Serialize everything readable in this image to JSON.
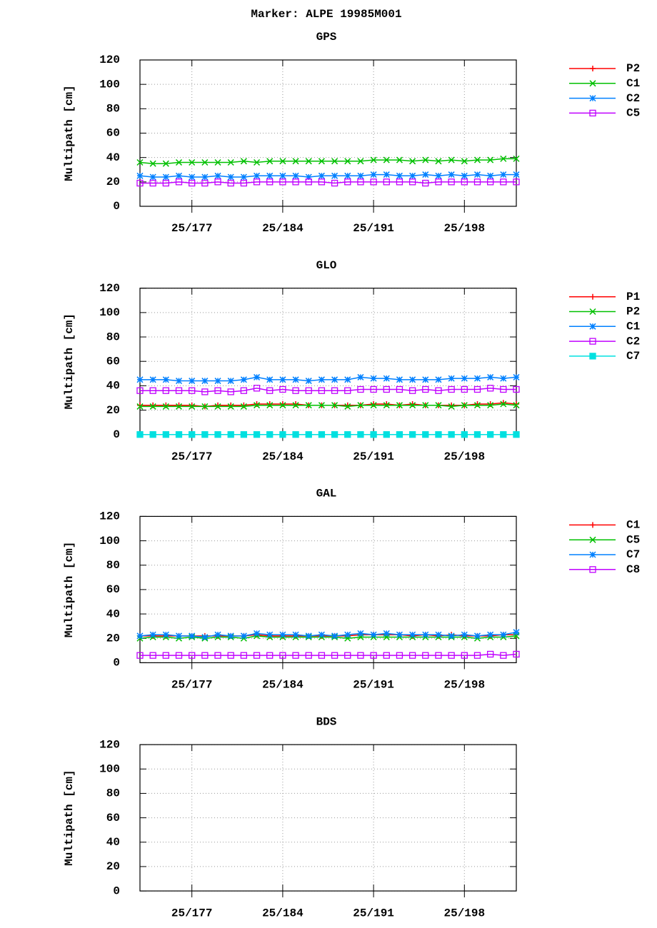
{
  "title": "Marker: ALPE 19985M001",
  "chart_data": [
    {
      "type": "line",
      "title": "GPS",
      "ylabel": "Multipath [cm]",
      "x": [
        173,
        174,
        175,
        176,
        177,
        178,
        179,
        180,
        181,
        182,
        183,
        184,
        185,
        186,
        187,
        188,
        189,
        190,
        191,
        192,
        193,
        194,
        195,
        196,
        197,
        198,
        199,
        200,
        201,
        202
      ],
      "xlim": [
        173,
        202
      ],
      "xticks": [
        {
          "value": 177,
          "label": "25/177"
        },
        {
          "value": 184,
          "label": "25/184"
        },
        {
          "value": 191,
          "label": "25/191"
        },
        {
          "value": 198,
          "label": "25/198"
        }
      ],
      "ylim": [
        0,
        120
      ],
      "yticks": [
        0,
        20,
        40,
        60,
        80,
        100,
        120
      ],
      "grid": true,
      "legend": "right",
      "series": [
        {
          "name": "P2",
          "color": "#ff0000",
          "values": [
            null,
            null,
            null,
            null,
            null,
            null,
            null,
            null,
            null,
            null,
            null,
            null,
            null,
            null,
            null,
            null,
            null,
            null,
            null,
            null,
            null,
            null,
            null,
            null,
            null,
            null,
            null,
            null,
            null,
            null
          ]
        },
        {
          "name": "C1",
          "color": "#00c000",
          "values": [
            36,
            35,
            35,
            36,
            36,
            36,
            36,
            36,
            37,
            36,
            37,
            37,
            37,
            37,
            37,
            37,
            37,
            37,
            38,
            38,
            38,
            37,
            38,
            37,
            38,
            37,
            38,
            38,
            39,
            39
          ]
        },
        {
          "name": "C2",
          "color": "#0080ff",
          "values": [
            25,
            24,
            24,
            25,
            24,
            24,
            25,
            24,
            24,
            25,
            25,
            25,
            25,
            24,
            25,
            25,
            25,
            25,
            26,
            26,
            25,
            25,
            26,
            25,
            26,
            25,
            26,
            25,
            26,
            26
          ]
        },
        {
          "name": "C5",
          "color": "#c000ff",
          "values": [
            19,
            19,
            19,
            20,
            19,
            19,
            20,
            19,
            19,
            20,
            20,
            20,
            20,
            20,
            20,
            19,
            20,
            20,
            20,
            20,
            20,
            20,
            19,
            20,
            20,
            20,
            20,
            20,
            20,
            20
          ]
        }
      ]
    },
    {
      "type": "line",
      "title": "GLO",
      "ylabel": "Multipath [cm]",
      "x": [
        173,
        174,
        175,
        176,
        177,
        178,
        179,
        180,
        181,
        182,
        183,
        184,
        185,
        186,
        187,
        188,
        189,
        190,
        191,
        192,
        193,
        194,
        195,
        196,
        197,
        198,
        199,
        200,
        201,
        202
      ],
      "xlim": [
        173,
        202
      ],
      "xticks": [
        {
          "value": 177,
          "label": "25/177"
        },
        {
          "value": 184,
          "label": "25/184"
        },
        {
          "value": 191,
          "label": "25/191"
        },
        {
          "value": 198,
          "label": "25/198"
        }
      ],
      "ylim": [
        0,
        120
      ],
      "yticks": [
        0,
        20,
        40,
        60,
        80,
        100,
        120
      ],
      "grid": true,
      "legend": "right",
      "series": [
        {
          "name": "P1",
          "color": "#ff0000",
          "values": [
            24,
            24,
            24,
            24,
            24,
            23,
            24,
            24,
            24,
            25,
            25,
            25,
            25,
            24,
            24,
            24,
            24,
            24,
            25,
            25,
            24,
            25,
            24,
            24,
            24,
            24,
            25,
            25,
            26,
            25
          ]
        },
        {
          "name": "P2",
          "color": "#00c000",
          "values": [
            23,
            23,
            23,
            23,
            23,
            23,
            23,
            23,
            23,
            24,
            24,
            24,
            24,
            24,
            24,
            24,
            23,
            24,
            24,
            24,
            24,
            24,
            24,
            24,
            23,
            24,
            24,
            24,
            25,
            24
          ]
        },
        {
          "name": "C1",
          "color": "#0080ff",
          "values": [
            45,
            45,
            45,
            44,
            44,
            44,
            44,
            44,
            45,
            47,
            45,
            45,
            45,
            44,
            45,
            45,
            45,
            47,
            46,
            46,
            45,
            45,
            45,
            45,
            46,
            46,
            46,
            47,
            46,
            47
          ]
        },
        {
          "name": "C2",
          "color": "#c000ff",
          "values": [
            36,
            36,
            36,
            36,
            36,
            35,
            36,
            35,
            36,
            38,
            36,
            37,
            36,
            36,
            36,
            36,
            36,
            37,
            37,
            37,
            37,
            36,
            37,
            36,
            37,
            37,
            37,
            38,
            37,
            37
          ]
        },
        {
          "name": "C7",
          "color": "#00e0e0",
          "values": [
            0,
            0,
            0,
            0,
            0,
            0,
            0,
            0,
            0,
            0,
            0,
            0,
            0,
            0,
            0,
            0,
            0,
            0,
            0,
            0,
            0,
            0,
            0,
            0,
            0,
            0,
            0,
            0,
            0,
            0
          ]
        }
      ]
    },
    {
      "type": "line",
      "title": "GAL",
      "ylabel": "Multipath [cm]",
      "x": [
        173,
        174,
        175,
        176,
        177,
        178,
        179,
        180,
        181,
        182,
        183,
        184,
        185,
        186,
        187,
        188,
        189,
        190,
        191,
        192,
        193,
        194,
        195,
        196,
        197,
        198,
        199,
        200,
        201,
        202
      ],
      "xlim": [
        173,
        202
      ],
      "xticks": [
        {
          "value": 177,
          "label": "25/177"
        },
        {
          "value": 184,
          "label": "25/184"
        },
        {
          "value": 191,
          "label": "25/191"
        },
        {
          "value": 198,
          "label": "25/198"
        }
      ],
      "ylim": [
        0,
        120
      ],
      "yticks": [
        0,
        20,
        40,
        60,
        80,
        100,
        120
      ],
      "grid": true,
      "legend": "right",
      "series": [
        {
          "name": "C1",
          "color": "#ff0000",
          "values": [
            22,
            22,
            22,
            22,
            22,
            22,
            22,
            22,
            22,
            23,
            22,
            22,
            22,
            22,
            22,
            22,
            22,
            23,
            23,
            23,
            23,
            22,
            23,
            22,
            23,
            22,
            22,
            22,
            23,
            23
          ]
        },
        {
          "name": "C5",
          "color": "#00c000",
          "values": [
            20,
            21,
            21,
            20,
            21,
            20,
            21,
            21,
            20,
            22,
            21,
            21,
            21,
            21,
            21,
            21,
            20,
            21,
            21,
            21,
            21,
            21,
            21,
            21,
            21,
            21,
            20,
            21,
            21,
            22
          ]
        },
        {
          "name": "C7",
          "color": "#0080ff",
          "values": [
            22,
            23,
            23,
            22,
            22,
            21,
            23,
            22,
            22,
            24,
            23,
            23,
            23,
            22,
            23,
            22,
            23,
            24,
            23,
            24,
            23,
            23,
            23,
            23,
            22,
            23,
            22,
            23,
            23,
            25
          ]
        },
        {
          "name": "C8",
          "color": "#c000ff",
          "values": [
            6,
            6,
            6,
            6,
            6,
            6,
            6,
            6,
            6,
            6,
            6,
            6,
            6,
            6,
            6,
            6,
            6,
            6,
            6,
            6,
            6,
            6,
            6,
            6,
            6,
            6,
            6,
            7,
            6,
            7
          ]
        }
      ]
    },
    {
      "type": "line",
      "title": "BDS",
      "ylabel": "Multipath [cm]",
      "x": [],
      "xlim": [
        173,
        202
      ],
      "xticks": [
        {
          "value": 177,
          "label": "25/177"
        },
        {
          "value": 184,
          "label": "25/184"
        },
        {
          "value": 191,
          "label": "25/191"
        },
        {
          "value": 198,
          "label": "25/198"
        }
      ],
      "ylim": [
        0,
        120
      ],
      "yticks": [
        0,
        20,
        40,
        60,
        80,
        100,
        120
      ],
      "grid": true,
      "legend": "right",
      "series": []
    }
  ]
}
